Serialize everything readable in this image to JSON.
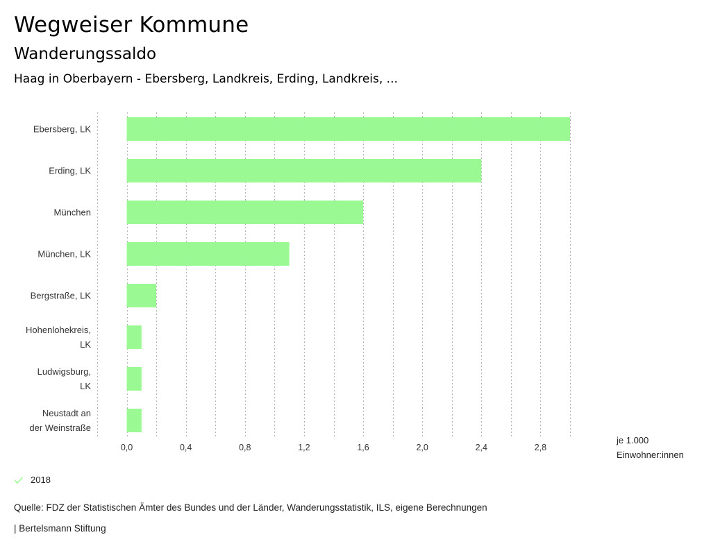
{
  "header": {
    "title": "Wegweiser Kommune",
    "subtitle": "Wanderungssaldo",
    "region": "Haag in Oberbayern - Ebersberg, Landkreis, Erding, Landkreis, ..."
  },
  "colors": {
    "bar": "#9AF993",
    "grid": "#b4b4b4",
    "legend_check": "#9AF993"
  },
  "chart_data": {
    "type": "bar",
    "orientation": "horizontal",
    "title": "Wanderungssaldo",
    "categories": [
      [
        "Ebersberg, LK"
      ],
      [
        "Erding, LK"
      ],
      [
        "München"
      ],
      [
        "München, LK"
      ],
      [
        "Bergstraße, LK"
      ],
      [
        "Hohenlohekreis,",
        "LK"
      ],
      [
        "Ludwigsburg,",
        "LK"
      ],
      [
        "Neustadt an",
        "der Weinstraße"
      ]
    ],
    "series": [
      {
        "name": "2018",
        "values": [
          3.0,
          2.4,
          1.6,
          1.1,
          0.2,
          0.1,
          0.1,
          0.1
        ]
      }
    ],
    "xlim": [
      -0.2,
      3.0
    ],
    "grid_step": 0.2,
    "tick_step": 0.4,
    "ticks": [
      "0,0",
      "0,4",
      "0,8",
      "1,2",
      "1,6",
      "2,0",
      "2,4",
      "2,8"
    ],
    "tick_values": [
      0,
      0.4,
      0.8,
      1.2,
      1.6,
      2.0,
      2.4,
      2.8
    ],
    "xlabel": [
      "je 1.000",
      "Einwohner:innen"
    ],
    "grid": true,
    "legend_position": "bottom-left"
  },
  "legend": {
    "items": [
      {
        "label": "2018",
        "icon": "check-icon"
      }
    ]
  },
  "footer": {
    "source": "Quelle: FDZ der Statistischen Ämter des Bundes und der Länder, Wanderungsstatistik, ILS, eigene Berechnungen",
    "credit": "| Bertelsmann Stiftung"
  }
}
